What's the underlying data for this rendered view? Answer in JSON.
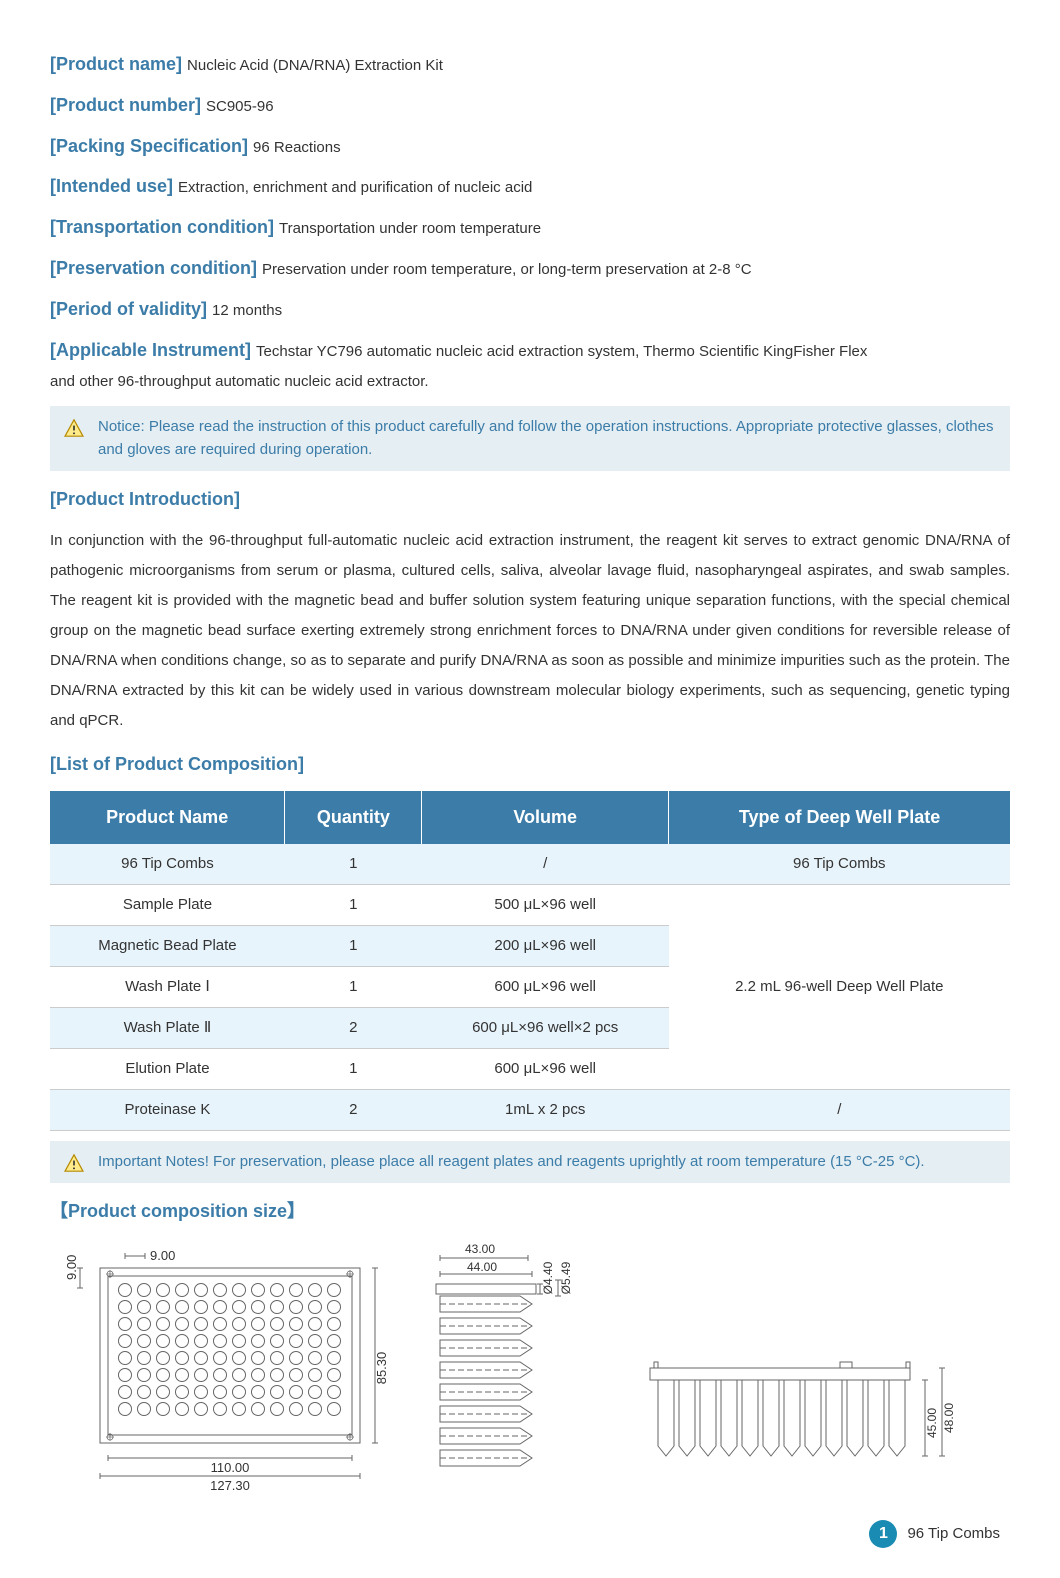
{
  "fields": [
    {
      "label": "[Product name]",
      "value": "Nucleic Acid (DNA/RNA) Extraction Kit"
    },
    {
      "label": "[Product number]",
      "value": "SC905-96"
    },
    {
      "label": "[Packing Specification]",
      "value": "96 Reactions"
    },
    {
      "label": "[Intended use]",
      "value": "Extraction, enrichment and purification of nucleic acid"
    },
    {
      "label": "[Transportation condition]",
      "value": "Transportation under room temperature"
    },
    {
      "label": "[Preservation condition]",
      "value": "Preservation under room temperature, or long-term preservation at 2-8 °C"
    },
    {
      "label": "[Period of validity]",
      "value": "12 months"
    },
    {
      "label": "[Applicable Instrument]",
      "value": "Techstar YC796 automatic nucleic acid extraction system, Thermo Scientific KingFisher Flex",
      "cont": "and other 96-throughput automatic nucleic acid extractor."
    }
  ],
  "notice1": "Notice: Please read the instruction of this product carefully and follow the operation instructions. Appropriate protective glasses, clothes and gloves are required during operation.",
  "section_intro_heading": "[Product Introduction]",
  "intro_text": "In conjunction with the 96-throughput full-automatic nucleic acid extraction instrument, the reagent kit serves to extract genomic DNA/RNA of pathogenic microorganisms from serum or plasma, cultured cells, saliva, alveolar lavage fluid, nasopharyngeal aspirates, and swab samples. The reagent kit is provided with the magnetic bead and buffer solution system featuring unique separation functions, with the special chemical group on the magnetic bead surface exerting extremely strong enrichment forces to DNA/RNA under given conditions for reversible release of DNA/RNA when conditions change, so as to separate and purify DNA/RNA as soon as possible and minimize impurities such as the protein. The DNA/RNA extracted by this kit can be widely used in various downstream molecular biology experiments, such as sequencing, genetic typing and qPCR.",
  "section_list_heading": "[List of Product Composition]",
  "table": {
    "header_bg": "#3b7ca8",
    "header_color": "#ffffff",
    "alt_row_bg": "#e8f4fb",
    "columns": [
      "Product Name",
      "Quantity",
      "Volume",
      "Type of Deep Well Plate"
    ],
    "rows": [
      {
        "cells": [
          "96 Tip Combs",
          "1",
          "/",
          "96 Tip Combs"
        ],
        "alt": true,
        "type_rowspan": 1
      },
      {
        "cells": [
          "Sample Plate",
          "1",
          "500 μL×96 well"
        ],
        "alt": false,
        "merged_type_start": true,
        "merged_type_value": "2.2 mL 96-well Deep Well Plate",
        "merged_type_rowspan": 5
      },
      {
        "cells": [
          "Magnetic Bead Plate",
          "1",
          "200 μL×96 well"
        ],
        "alt": true
      },
      {
        "cells": [
          "Wash Plate Ⅰ",
          "1",
          "600 μL×96 well"
        ],
        "alt": false
      },
      {
        "cells": [
          "Wash Plate Ⅱ",
          "2",
          "600 μL×96 well×2 pcs"
        ],
        "alt": true
      },
      {
        "cells": [
          "Elution Plate",
          "1",
          "600 μL×96 well"
        ],
        "alt": false
      },
      {
        "cells": [
          "Proteinase K",
          "2",
          "1mL x 2 pcs",
          "/"
        ],
        "alt": true
      }
    ]
  },
  "notice2": "Important Notes! For preservation, please place all reagent plates and reagents uprightly at room temperature (15 °C-25 °C).",
  "section_size_heading": "【Product composition size】",
  "diagrams": {
    "stroke_color": "#666666",
    "top_plate": {
      "well_rows": 8,
      "well_cols": 12,
      "dim_top_left": "9.00",
      "dim_top": "9.00",
      "dim_height": "85.30",
      "dim_width_inner": "110.00",
      "dim_width_outer": "127.30"
    },
    "side_view": {
      "dim_top_inner": "43.00",
      "dim_top_outer": "44.00",
      "dim_d1": "Ø4.40",
      "dim_d2": "Ø5.49"
    },
    "comb_view": {
      "dim_inner": "45.00",
      "dim_outer": "48.00"
    }
  },
  "footer": {
    "page_number": "1",
    "page_label": "96 Tip Combs"
  },
  "colors": {
    "brand_blue": "#3b7ca8",
    "notice_bg": "#e5eef3",
    "page_circle": "#1a8bb3",
    "text": "#333333",
    "warning_border": "#b58900"
  }
}
